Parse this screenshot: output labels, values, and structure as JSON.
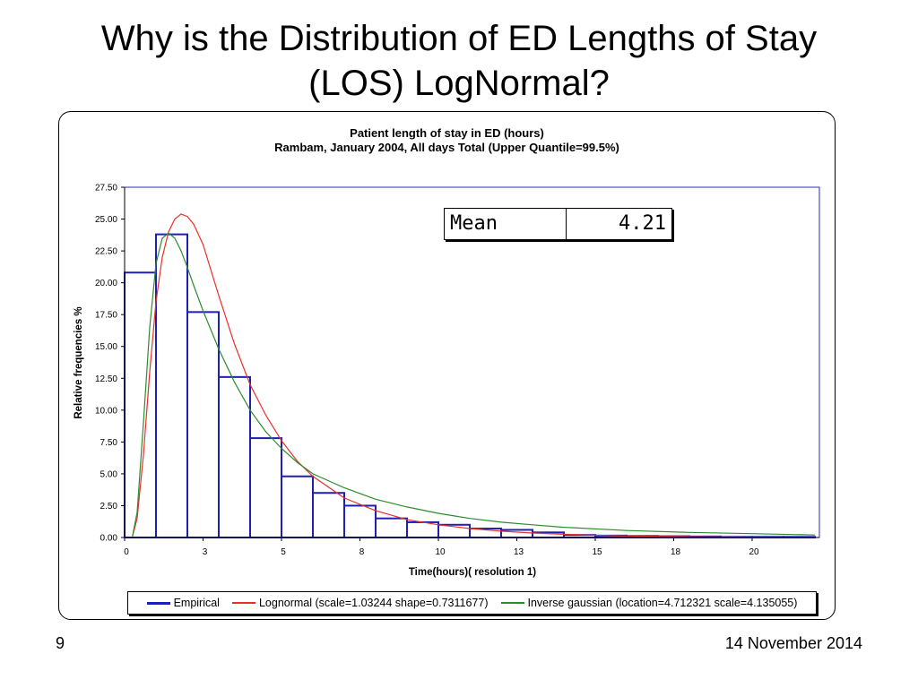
{
  "slide": {
    "title_line1": "Why is the Distribution of ED Lengths of Stay",
    "title_line2": "(LOS) LogNormal?",
    "page_number": "9",
    "date": "14 November 2014"
  },
  "mean_box": {
    "label": "Mean",
    "value": "4.21"
  },
  "chart_data": {
    "type": "bar",
    "title": "Patient length of stay in ED (hours)",
    "subtitle": "Rambam, January 2004, All days Total (Upper Quantile=99.5%)",
    "xlabel": "Time(hours)( resolution 1)",
    "ylabel": "Relative frequencies %",
    "ylim": [
      0,
      27.5
    ],
    "yticks": [
      "0.00",
      "2.50",
      "5.00",
      "7.50",
      "10.00",
      "12.50",
      "15.00",
      "17.50",
      "20.00",
      "22.50",
      "25.00",
      "27.50"
    ],
    "xticks": [
      "0",
      "3",
      "5",
      "8",
      "10",
      "13",
      "15",
      "18",
      "20"
    ],
    "grid": false,
    "legend_position": "bottom",
    "series": [
      {
        "name": "Empirical",
        "type": "step",
        "color": "#1f1fb4",
        "values": [
          20.8,
          23.8,
          17.7,
          12.6,
          7.8,
          4.8,
          3.5,
          2.5,
          1.5,
          1.2,
          1.0,
          0.7,
          0.6,
          0.4,
          0.2,
          0.15,
          0.12,
          0.1,
          0.08,
          0.05,
          0.05,
          0.05
        ]
      },
      {
        "name": "Lognormal (scale=1.03244 shape=0.7311677)",
        "type": "line",
        "color": "#e8302a",
        "x": [
          0.25,
          0.4,
          0.6,
          0.8,
          1.0,
          1.2,
          1.4,
          1.6,
          1.8,
          2.0,
          2.2,
          2.5,
          3.0,
          3.5,
          4.0,
          4.5,
          5.0,
          5.5,
          6.0,
          7.0,
          8.0,
          9.0,
          10.0,
          11.0,
          12.0,
          13.0,
          14.0,
          16.0,
          18.0,
          20.0,
          22.0
        ],
        "y": [
          0.1,
          1.5,
          6.5,
          13.0,
          18.5,
          22.0,
          24.0,
          25.0,
          25.4,
          25.2,
          24.6,
          23.0,
          19.0,
          15.2,
          12.0,
          9.6,
          7.6,
          6.0,
          4.8,
          3.1,
          2.1,
          1.4,
          1.0,
          0.7,
          0.5,
          0.35,
          0.25,
          0.12,
          0.06,
          0.03,
          0.02
        ]
      },
      {
        "name": "Inverse gaussian (location=4.712321 scale=4.135055)",
        "type": "line",
        "color": "#2c8c2c",
        "x": [
          0.25,
          0.4,
          0.6,
          0.8,
          1.0,
          1.2,
          1.4,
          1.6,
          1.8,
          2.0,
          2.2,
          2.5,
          3.0,
          3.5,
          4.0,
          4.5,
          5.0,
          5.5,
          6.0,
          7.0,
          8.0,
          9.0,
          10.0,
          11.0,
          12.0,
          13.0,
          14.0,
          16.0,
          18.0,
          20.0,
          22.0
        ],
        "y": [
          0.1,
          2.0,
          9.0,
          16.5,
          21.5,
          23.5,
          23.9,
          23.5,
          22.5,
          21.2,
          19.8,
          17.8,
          14.8,
          12.2,
          10.0,
          8.3,
          7.0,
          5.9,
          5.0,
          3.9,
          3.0,
          2.4,
          1.9,
          1.5,
          1.2,
          1.0,
          0.8,
          0.55,
          0.4,
          0.3,
          0.2
        ]
      }
    ]
  }
}
